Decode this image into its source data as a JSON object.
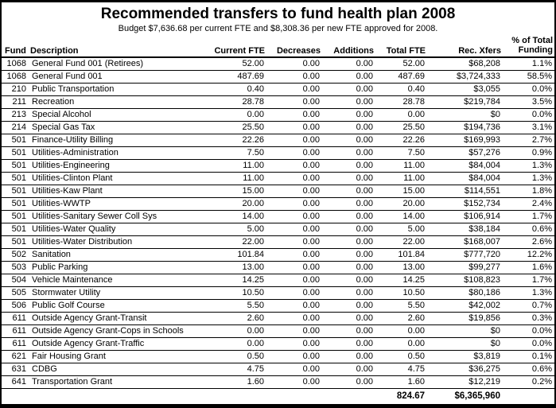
{
  "title": "Recommended transfers to fund health plan 2008",
  "subtitle": "Budget $7,636.68 per current FTE and $8,308.36 per new FTE approved for 2008.",
  "table": {
    "columns": {
      "fund": "Fund",
      "description": "Description",
      "current_fte": "Current FTE",
      "decreases": "Decreases",
      "additions": "Additions",
      "total_fte": "Total FTE",
      "rec_xfers": "Rec. Xfers",
      "pct_line1": "% of Total",
      "pct_line2": "Funding"
    },
    "rows": [
      {
        "fund": "1068",
        "description": "General Fund 001 (Retirees)",
        "current_fte": "52.00",
        "decreases": "0.00",
        "additions": "0.00",
        "total_fte": "52.00",
        "rec_xfers": "$68,208",
        "pct_of_total": "1.1%"
      },
      {
        "fund": "1068",
        "description": "General Fund 001",
        "current_fte": "487.69",
        "decreases": "0.00",
        "additions": "0.00",
        "total_fte": "487.69",
        "rec_xfers": "$3,724,333",
        "pct_of_total": "58.5%"
      },
      {
        "fund": "210",
        "description": "Public Transportation",
        "current_fte": "0.40",
        "decreases": "0.00",
        "additions": "0.00",
        "total_fte": "0.40",
        "rec_xfers": "$3,055",
        "pct_of_total": "0.0%"
      },
      {
        "fund": "211",
        "description": "Recreation",
        "current_fte": "28.78",
        "decreases": "0.00",
        "additions": "0.00",
        "total_fte": "28.78",
        "rec_xfers": "$219,784",
        "pct_of_total": "3.5%"
      },
      {
        "fund": "213",
        "description": "Special Alcohol",
        "current_fte": "0.00",
        "decreases": "0.00",
        "additions": "0.00",
        "total_fte": "0.00",
        "rec_xfers": "$0",
        "pct_of_total": "0.0%"
      },
      {
        "fund": "214",
        "description": "Special Gas Tax",
        "current_fte": "25.50",
        "decreases": "0.00",
        "additions": "0.00",
        "total_fte": "25.50",
        "rec_xfers": "$194,736",
        "pct_of_total": "3.1%"
      },
      {
        "fund": "501",
        "description": "Finance-Utility Billing",
        "current_fte": "22.26",
        "decreases": "0.00",
        "additions": "0.00",
        "total_fte": "22.26",
        "rec_xfers": "$169,993",
        "pct_of_total": "2.7%"
      },
      {
        "fund": "501",
        "description": "Utilities-Administration",
        "current_fte": "7.50",
        "decreases": "0.00",
        "additions": "0.00",
        "total_fte": "7.50",
        "rec_xfers": "$57,276",
        "pct_of_total": "0.9%"
      },
      {
        "fund": "501",
        "description": "Utilities-Engineering",
        "current_fte": "11.00",
        "decreases": "0.00",
        "additions": "0.00",
        "total_fte": "11.00",
        "rec_xfers": "$84,004",
        "pct_of_total": "1.3%"
      },
      {
        "fund": "501",
        "description": "Utilities-Clinton Plant",
        "current_fte": "11.00",
        "decreases": "0.00",
        "additions": "0.00",
        "total_fte": "11.00",
        "rec_xfers": "$84,004",
        "pct_of_total": "1.3%"
      },
      {
        "fund": "501",
        "description": "Utilities-Kaw Plant",
        "current_fte": "15.00",
        "decreases": "0.00",
        "additions": "0.00",
        "total_fte": "15.00",
        "rec_xfers": "$114,551",
        "pct_of_total": "1.8%"
      },
      {
        "fund": "501",
        "description": "Utilities-WWTP",
        "current_fte": "20.00",
        "decreases": "0.00",
        "additions": "0.00",
        "total_fte": "20.00",
        "rec_xfers": "$152,734",
        "pct_of_total": "2.4%"
      },
      {
        "fund": "501",
        "description": "Utilities-Sanitary Sewer Coll Sys",
        "current_fte": "14.00",
        "decreases": "0.00",
        "additions": "0.00",
        "total_fte": "14.00",
        "rec_xfers": "$106,914",
        "pct_of_total": "1.7%"
      },
      {
        "fund": "501",
        "description": "Utilities-Water Quality",
        "current_fte": "5.00",
        "decreases": "0.00",
        "additions": "0.00",
        "total_fte": "5.00",
        "rec_xfers": "$38,184",
        "pct_of_total": "0.6%"
      },
      {
        "fund": "501",
        "description": "Utilities-Water Distribution",
        "current_fte": "22.00",
        "decreases": "0.00",
        "additions": "0.00",
        "total_fte": "22.00",
        "rec_xfers": "$168,007",
        "pct_of_total": "2.6%"
      },
      {
        "fund": "502",
        "description": "Sanitation",
        "current_fte": "101.84",
        "decreases": "0.00",
        "additions": "0.00",
        "total_fte": "101.84",
        "rec_xfers": "$777,720",
        "pct_of_total": "12.2%"
      },
      {
        "fund": "503",
        "description": "Public Parking",
        "current_fte": "13.00",
        "decreases": "0.00",
        "additions": "0.00",
        "total_fte": "13.00",
        "rec_xfers": "$99,277",
        "pct_of_total": "1.6%"
      },
      {
        "fund": "504",
        "description": "Vehicle Maintenance",
        "current_fte": "14.25",
        "decreases": "0.00",
        "additions": "0.00",
        "total_fte": "14.25",
        "rec_xfers": "$108,823",
        "pct_of_total": "1.7%"
      },
      {
        "fund": "505",
        "description": "Stormwater Utility",
        "current_fte": "10.50",
        "decreases": "0.00",
        "additions": "0.00",
        "total_fte": "10.50",
        "rec_xfers": "$80,186",
        "pct_of_total": "1.3%"
      },
      {
        "fund": "506",
        "description": "Public Golf Course",
        "current_fte": "5.50",
        "decreases": "0.00",
        "additions": "0.00",
        "total_fte": "5.50",
        "rec_xfers": "$42,002",
        "pct_of_total": "0.7%"
      },
      {
        "fund": "611",
        "description": "Outside Agency Grant-Transit",
        "current_fte": "2.60",
        "decreases": "0.00",
        "additions": "0.00",
        "total_fte": "2.60",
        "rec_xfers": "$19,856",
        "pct_of_total": "0.3%"
      },
      {
        "fund": "611",
        "description": "Outside Agency Grant-Cops in Schools",
        "current_fte": "0.00",
        "decreases": "0.00",
        "additions": "0.00",
        "total_fte": "0.00",
        "rec_xfers": "$0",
        "pct_of_total": "0.0%"
      },
      {
        "fund": "611",
        "description": "Outside Agency Grant-Traffic",
        "current_fte": "0.00",
        "decreases": "0.00",
        "additions": "0.00",
        "total_fte": "0.00",
        "rec_xfers": "$0",
        "pct_of_total": "0.0%"
      },
      {
        "fund": "621",
        "description": "Fair Housing Grant",
        "current_fte": "0.50",
        "decreases": "0.00",
        "additions": "0.00",
        "total_fte": "0.50",
        "rec_xfers": "$3,819",
        "pct_of_total": "0.1%"
      },
      {
        "fund": "631",
        "description": "CDBG",
        "current_fte": "4.75",
        "decreases": "0.00",
        "additions": "0.00",
        "total_fte": "4.75",
        "rec_xfers": "$36,275",
        "pct_of_total": "0.6%"
      },
      {
        "fund": "641",
        "description": "Transportation Grant",
        "current_fte": "1.60",
        "decreases": "0.00",
        "additions": "0.00",
        "total_fte": "1.60",
        "rec_xfers": "$12,219",
        "pct_of_total": "0.2%"
      }
    ],
    "total_row": {
      "total_fte": "824.67",
      "rec_xfers": "$6,365,960"
    }
  }
}
